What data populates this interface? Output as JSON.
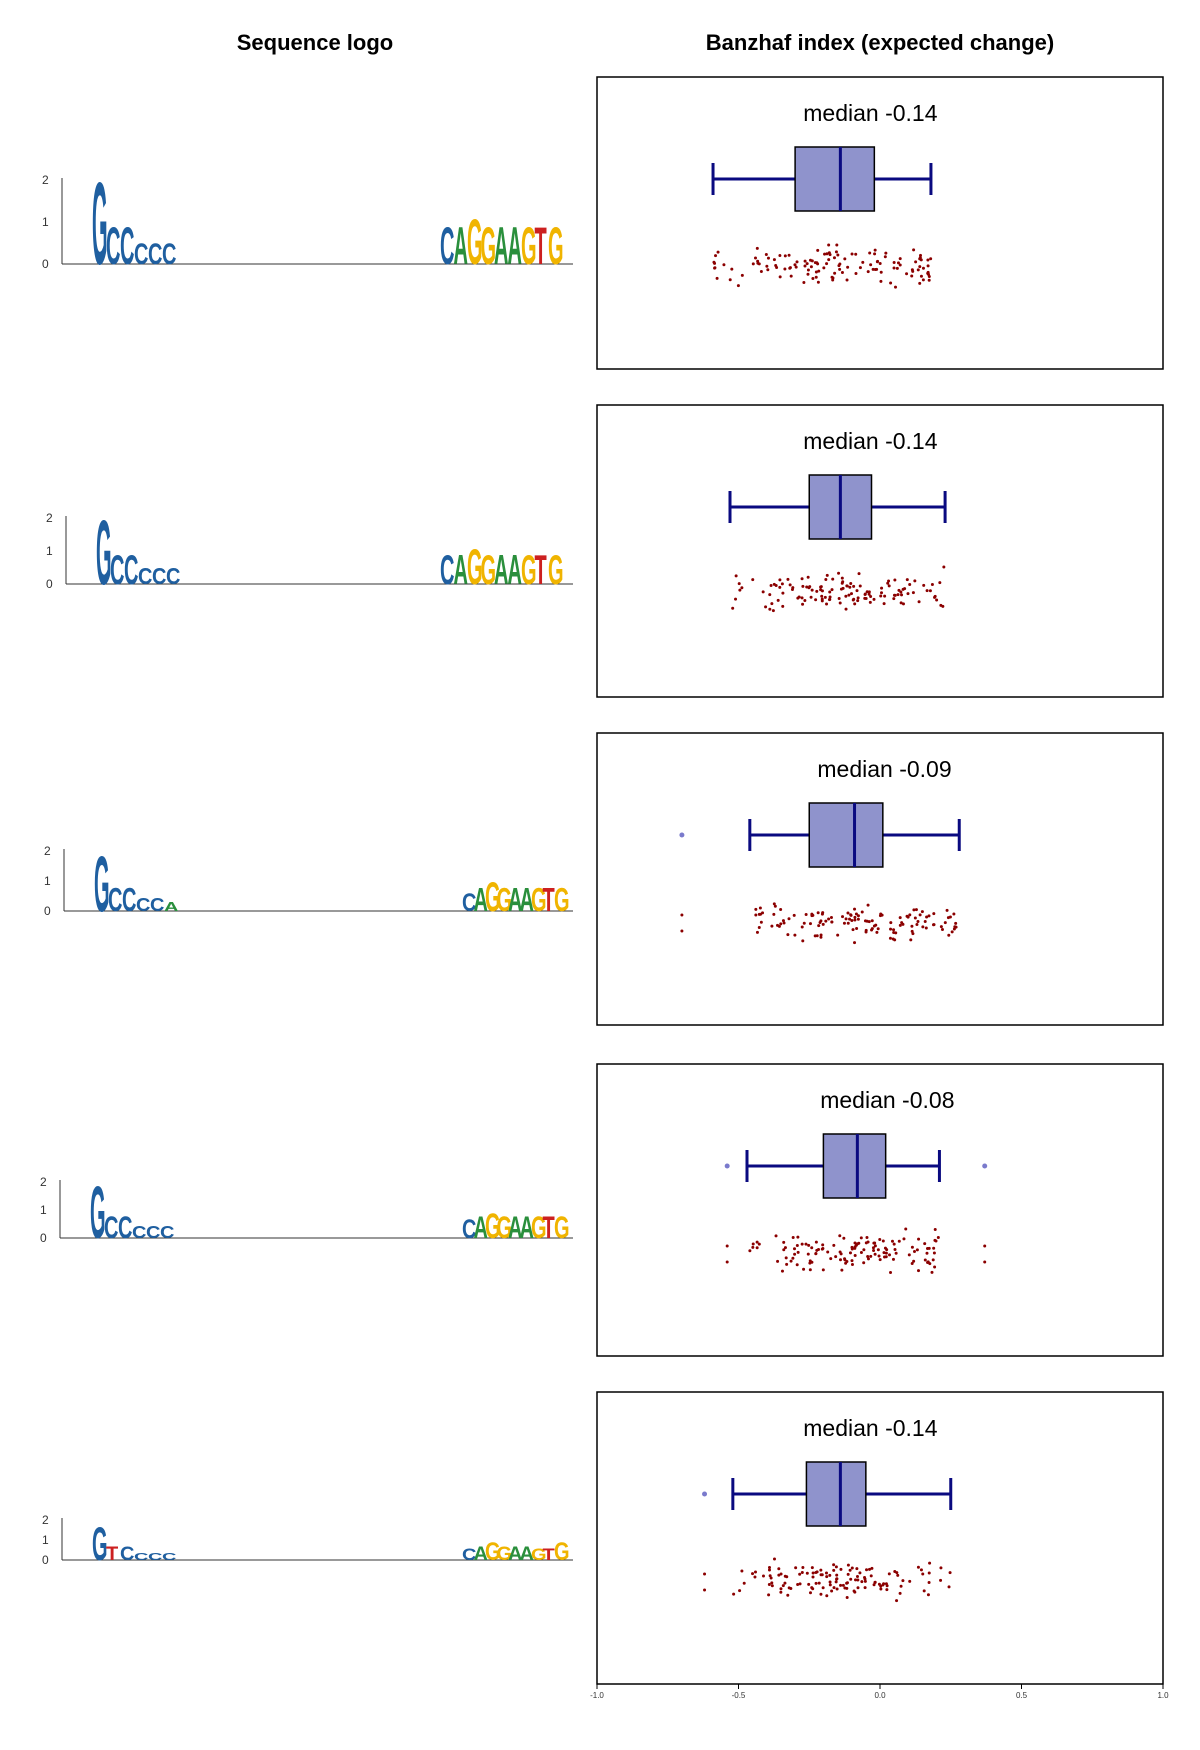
{
  "titles": {
    "left": "Sequence logo",
    "right": "Banzhaf index (expected change)"
  },
  "colors": {
    "A": "#2a8f3c",
    "C": "#1f5fa0",
    "G": "#f0b400",
    "T": "#cc2020",
    "box_fill": "#8f93cc",
    "box_stroke": "#0a0a80",
    "points": "#8b0000",
    "outliers": "#7a7acc"
  },
  "x_axis": {
    "ticks": [
      "-1.0",
      "-0.5",
      "0.0",
      "0.5",
      "1.0"
    ],
    "tick_values": [
      -1.0,
      -0.5,
      0.0,
      0.5,
      1.0
    ],
    "range": [
      -1.0,
      1.0
    ]
  },
  "chart_data": [
    {
      "type": "box",
      "median_label": "median -0.14",
      "box": {
        "whisker_low": -0.59,
        "q1": -0.3,
        "median": -0.14,
        "q3": -0.02,
        "whisker_high": 0.18
      },
      "outliers": [],
      "point_range": [
        -0.59,
        0.18
      ],
      "logo": {
        "yticks": [
          "2",
          "1",
          "0"
        ],
        "left_motif": [
          {
            "l": "G",
            "c": "C",
            "h": 2.0
          },
          {
            "l": "C",
            "c": "C",
            "h": 0.9
          },
          {
            "l": "C",
            "c": "C",
            "h": 0.9
          },
          {
            "l": "C",
            "c": "C",
            "h": 0.5
          },
          {
            "l": "C",
            "c": "C",
            "h": 0.5
          },
          {
            "l": "C",
            "c": "C",
            "h": 0.5
          }
        ],
        "right_motif": [
          {
            "l": "C",
            "c": "C",
            "h": 0.9
          },
          {
            "l": "A",
            "c": "A",
            "h": 0.9
          },
          {
            "l": "G",
            "c": "G",
            "h": 1.1
          },
          {
            "l": "G",
            "c": "G",
            "h": 0.9
          },
          {
            "l": "A",
            "c": "A",
            "h": 0.9
          },
          {
            "l": "A",
            "c": "A",
            "h": 0.9
          },
          {
            "l": "G",
            "c": "G",
            "h": 0.9
          },
          {
            "l": "T",
            "c": "T",
            "h": 0.9
          },
          {
            "l": "G",
            "c": "G",
            "h": 0.9
          }
        ]
      }
    },
    {
      "type": "box",
      "median_label": "median -0.14",
      "box": {
        "whisker_low": -0.53,
        "q1": -0.25,
        "median": -0.14,
        "q3": -0.03,
        "whisker_high": 0.23
      },
      "outliers": [],
      "point_range": [
        -0.53,
        0.23
      ],
      "logo": {
        "yticks": [
          "2",
          "1",
          "0"
        ],
        "left_motif": [
          {
            "l": "G",
            "c": "C",
            "h": 2.0
          },
          {
            "l": "C",
            "c": "C",
            "h": 0.9
          },
          {
            "l": "C",
            "c": "C",
            "h": 0.9
          },
          {
            "l": "C",
            "c": "C",
            "h": 0.5
          },
          {
            "l": "C",
            "c": "C",
            "h": 0.5
          },
          {
            "l": "C",
            "c": "C",
            "h": 0.5
          }
        ],
        "right_motif": [
          {
            "l": "C",
            "c": "C",
            "h": 0.9
          },
          {
            "l": "A",
            "c": "A",
            "h": 0.9
          },
          {
            "l": "G",
            "c": "G",
            "h": 1.1
          },
          {
            "l": "G",
            "c": "G",
            "h": 0.9
          },
          {
            "l": "A",
            "c": "A",
            "h": 0.9
          },
          {
            "l": "A",
            "c": "A",
            "h": 0.9
          },
          {
            "l": "G",
            "c": "G",
            "h": 0.9
          },
          {
            "l": "T",
            "c": "T",
            "h": 0.9
          },
          {
            "l": "G",
            "c": "G",
            "h": 0.9
          }
        ]
      }
    },
    {
      "type": "box",
      "median_label": "median -0.09",
      "box": {
        "whisker_low": -0.46,
        "q1": -0.25,
        "median": -0.09,
        "q3": 0.01,
        "whisker_high": 0.28
      },
      "outliers": [
        -0.7
      ],
      "point_range": [
        -0.46,
        0.28
      ],
      "logo": {
        "yticks": [
          "2",
          "1",
          "0"
        ],
        "left_motif": [
          {
            "l": "G",
            "c": "C",
            "h": 1.9
          },
          {
            "l": "C",
            "c": "C",
            "h": 0.8
          },
          {
            "l": "C",
            "c": "C",
            "h": 0.8
          },
          {
            "l": "C",
            "c": "C",
            "h": 0.45
          },
          {
            "l": "C",
            "c": "C",
            "h": 0.45
          },
          {
            "l": "A",
            "c": "A",
            "h": 0.3
          }
        ],
        "right_motif": [
          {
            "l": "C",
            "c": "C",
            "h": 0.6
          },
          {
            "l": "A",
            "c": "A",
            "h": 0.8
          },
          {
            "l": "G",
            "c": "G",
            "h": 1.0
          },
          {
            "l": "G",
            "c": "G",
            "h": 0.8
          },
          {
            "l": "A",
            "c": "A",
            "h": 0.8
          },
          {
            "l": "A",
            "c": "A",
            "h": 0.8
          },
          {
            "l": "G",
            "c": "G",
            "h": 0.8
          },
          {
            "l": "T",
            "c": "T",
            "h": 0.8
          },
          {
            "l": "G",
            "c": "G",
            "h": 0.8
          }
        ]
      }
    },
    {
      "type": "box",
      "median_label": "median -0.08",
      "box": {
        "whisker_low": -0.47,
        "q1": -0.2,
        "median": -0.08,
        "q3": 0.02,
        "whisker_high": 0.21
      },
      "outliers": [
        -0.54,
        0.37
      ],
      "point_range": [
        -0.47,
        0.21
      ],
      "logo": {
        "yticks": [
          "2",
          "1",
          "0"
        ],
        "left_motif": [
          {
            "l": "G",
            "c": "C",
            "h": 1.9
          },
          {
            "l": "C",
            "c": "C",
            "h": 0.8
          },
          {
            "l": "C",
            "c": "C",
            "h": 0.8
          },
          {
            "l": "C",
            "c": "C",
            "h": 0.45
          },
          {
            "l": "C",
            "c": "C",
            "h": 0.45
          },
          {
            "l": "C",
            "c": "C",
            "h": 0.45
          }
        ],
        "right_motif": [
          {
            "l": "C",
            "c": "C",
            "h": 0.7
          },
          {
            "l": "A",
            "c": "A",
            "h": 0.8
          },
          {
            "l": "G",
            "c": "G",
            "h": 0.9
          },
          {
            "l": "G",
            "c": "G",
            "h": 0.8
          },
          {
            "l": "A",
            "c": "A",
            "h": 0.8
          },
          {
            "l": "A",
            "c": "A",
            "h": 0.8
          },
          {
            "l": "G",
            "c": "G",
            "h": 0.8
          },
          {
            "l": "T",
            "c": "T",
            "h": 0.8
          },
          {
            "l": "G",
            "c": "G",
            "h": 0.8
          }
        ]
      }
    },
    {
      "type": "box",
      "median_label": "median -0.14",
      "box": {
        "whisker_low": -0.52,
        "q1": -0.26,
        "median": -0.14,
        "q3": -0.05,
        "whisker_high": 0.25
      },
      "outliers": [
        -0.62
      ],
      "point_range": [
        -0.52,
        0.25
      ],
      "logo": {
        "yticks": [
          "2",
          "1",
          "0"
        ],
        "left_motif": [
          {
            "l": "G",
            "c": "C",
            "h": 1.7
          },
          {
            "l": "T",
            "c": "T",
            "h": 0.7
          },
          {
            "l": "C",
            "c": "C",
            "h": 0.7
          },
          {
            "l": "C",
            "c": "C",
            "h": 0.35
          },
          {
            "l": "C",
            "c": "C",
            "h": 0.35
          },
          {
            "l": "C",
            "c": "C",
            "h": 0.35
          }
        ],
        "right_motif": [
          {
            "l": "C",
            "c": "C",
            "h": 0.6
          },
          {
            "l": "A",
            "c": "A",
            "h": 0.7
          },
          {
            "l": "G",
            "c": "G",
            "h": 0.9
          },
          {
            "l": "G",
            "c": "G",
            "h": 0.7
          },
          {
            "l": "A",
            "c": "A",
            "h": 0.7
          },
          {
            "l": "A",
            "c": "A",
            "h": 0.7
          },
          {
            "l": "G",
            "c": "G",
            "h": 0.6
          },
          {
            "l": "T",
            "c": "T",
            "h": 0.6
          },
          {
            "l": "G",
            "c": "G",
            "h": 0.9
          }
        ]
      }
    }
  ]
}
